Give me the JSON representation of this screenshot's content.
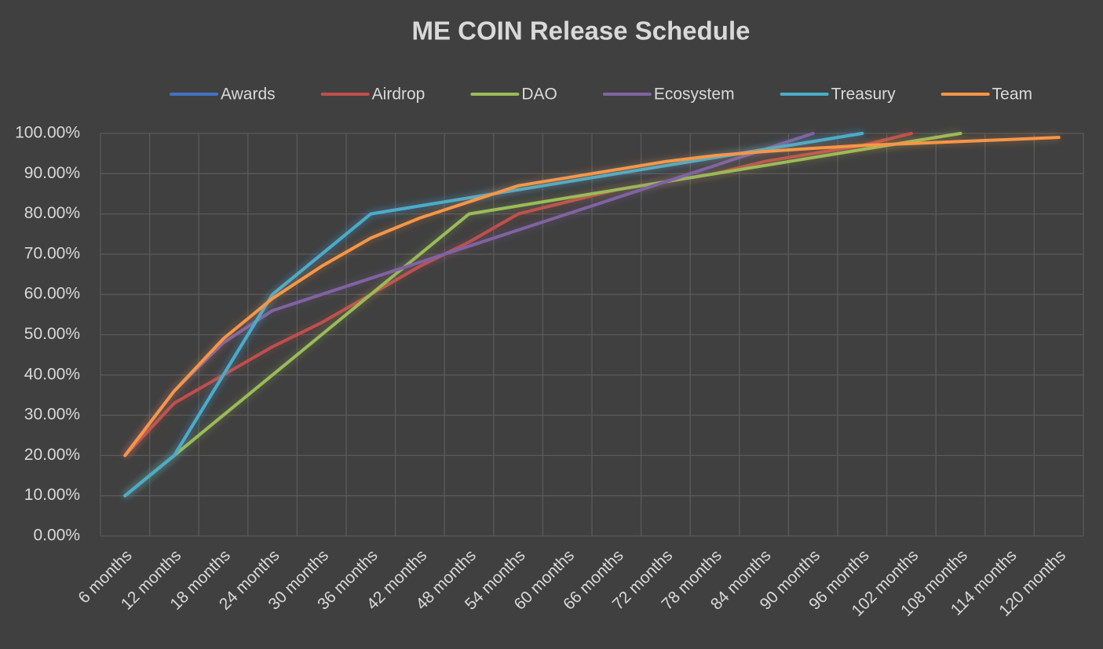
{
  "chart_data": {
    "type": "line",
    "title": "ME COIN Release Schedule",
    "categories": [
      "6 months",
      "12 months",
      "18 months",
      "24 months",
      "30 months",
      "36 months",
      "42 months",
      "48 months",
      "54 months",
      "60 months",
      "66 months",
      "72 months",
      "78 months",
      "84 months",
      "90 months",
      "96 months",
      "102 months",
      "108 months",
      "114 months",
      "120 months"
    ],
    "series": [
      {
        "name": "Awards",
        "color": "#4472c4",
        "values": [
          10,
          20,
          40,
          60,
          70,
          80,
          82,
          84,
          86,
          88,
          90,
          92,
          94,
          96,
          98,
          100,
          null,
          null,
          null,
          null
        ]
      },
      {
        "name": "Airdrop",
        "color": "#c0504d",
        "values": [
          20,
          33,
          40,
          47,
          53,
          60,
          67,
          73,
          80,
          83,
          86,
          88,
          90,
          93,
          95,
          97,
          100,
          null,
          null,
          null
        ]
      },
      {
        "name": "DAO",
        "color": "#9bbb59",
        "values": [
          10,
          20,
          30,
          40,
          50,
          60,
          70,
          80,
          82,
          84,
          86,
          88,
          90,
          92,
          94,
          96,
          98,
          100,
          null,
          null
        ]
      },
      {
        "name": "Ecosystem",
        "color": "#8064a2",
        "values": [
          20,
          36,
          48,
          56,
          60,
          64,
          68,
          72,
          76,
          80,
          84,
          88,
          92,
          96,
          100,
          null,
          null,
          null,
          null,
          null
        ]
      },
      {
        "name": "Treasury",
        "color": "#4bacc6",
        "values": [
          10,
          20,
          40,
          60,
          70,
          80,
          82,
          84,
          86,
          88,
          90,
          92,
          94,
          96,
          98,
          100,
          null,
          null,
          null,
          null
        ]
      },
      {
        "name": "Team",
        "color": "#f79646",
        "values": [
          20,
          36,
          49,
          59,
          67,
          74,
          79,
          83,
          87,
          89,
          91,
          93,
          94.5,
          95.5,
          96.3,
          97,
          97.5,
          98,
          98.5,
          99
        ]
      }
    ],
    "ylim": [
      0,
      100
    ],
    "yticks": [
      {
        "value": 0,
        "label": "0.00%"
      },
      {
        "value": 10,
        "label": "10.00%"
      },
      {
        "value": 20,
        "label": "20.00%"
      },
      {
        "value": 30,
        "label": "30.00%"
      },
      {
        "value": 40,
        "label": "40.00%"
      },
      {
        "value": 50,
        "label": "50.00%"
      },
      {
        "value": 60,
        "label": "60.00%"
      },
      {
        "value": 70,
        "label": "70.00%"
      },
      {
        "value": 80,
        "label": "80.00%"
      },
      {
        "value": 90,
        "label": "90.00%"
      },
      {
        "value": 100,
        "label": "100.00%"
      }
    ],
    "grid": true,
    "legend": "top"
  }
}
